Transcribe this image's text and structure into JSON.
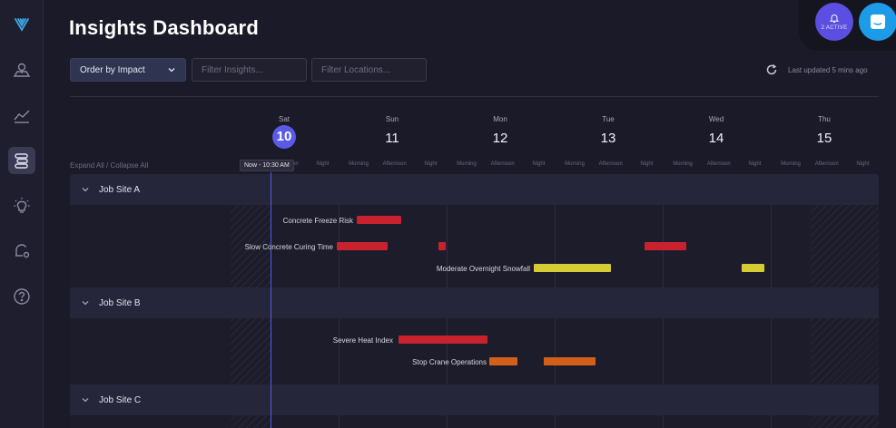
{
  "header": {
    "title": "Insights Dashboard",
    "order_select": "Order by Impact",
    "filter_insights_placeholder": "Filter Insights...",
    "filter_locations_placeholder": "Filter Locations...",
    "last_updated": "Last updated 5 mins ago"
  },
  "notifications": {
    "badge": "2 ACTIVE"
  },
  "timeline": {
    "expand_collapse": "Expand All / Collapse All",
    "now_label": "Now - 10:30 AM",
    "days": [
      {
        "name": "Sat",
        "num": "10",
        "today": true
      },
      {
        "name": "Sun",
        "num": "11"
      },
      {
        "name": "Mon",
        "num": "12"
      },
      {
        "name": "Tue",
        "num": "13"
      },
      {
        "name": "Wed",
        "num": "14"
      },
      {
        "name": "Thu",
        "num": "15"
      }
    ],
    "times_of_day": [
      "Morning",
      "Afternoon",
      "Night"
    ]
  },
  "sites": [
    {
      "name": "Job Site A",
      "insights": [
        {
          "label": "Concrete Freeze Risk",
          "severity": "high"
        },
        {
          "label": "Slow Concrete Curing Time",
          "severity": "high"
        },
        {
          "label": "Moderate Overnight Snowfall",
          "severity": "moderate"
        }
      ]
    },
    {
      "name": "Job Site B",
      "insights": [
        {
          "label": "Severe Heat Index",
          "severity": "high"
        },
        {
          "label": "Stop Crane Operations",
          "severity": "medium"
        }
      ]
    },
    {
      "name": "Job Site C",
      "insights": []
    }
  ],
  "colors": {
    "high": "#c8222f",
    "medium": "#d1611a",
    "moderate": "#d4cc35",
    "accent": "#5b5ae6",
    "chat": "#1e9be8"
  }
}
